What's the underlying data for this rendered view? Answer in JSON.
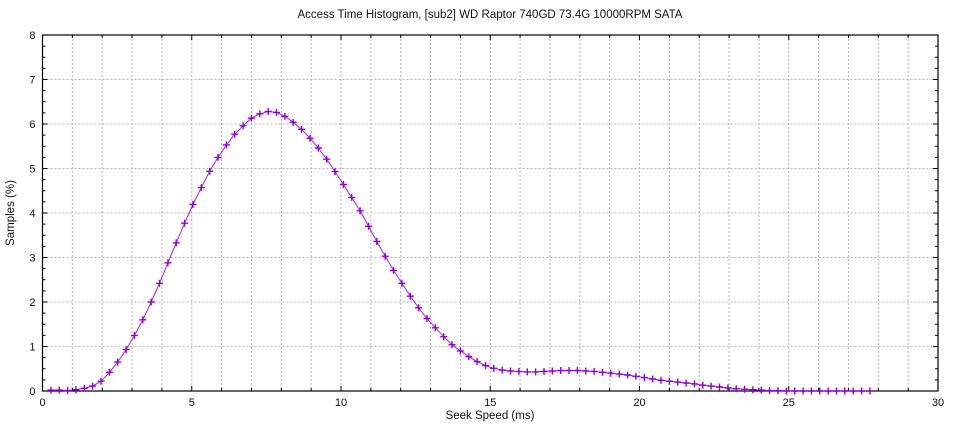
{
  "chart_data": {
    "type": "line",
    "title": "Access Time Histogram, [sub2] WD Raptor 740GD 73.4G 10000RPM SATA",
    "xlabel": "Seek Speed (ms)",
    "ylabel": "Samples (%)",
    "xlim": [
      0,
      30
    ],
    "ylim": [
      0,
      8
    ],
    "x_major_ticks": [
      0,
      5,
      10,
      15,
      20,
      25,
      30
    ],
    "x_tick_labels": [
      "0",
      "5",
      "10",
      "15",
      "20",
      "25",
      "30"
    ],
    "x_minor_step": 1,
    "y_major_ticks": [
      0,
      1,
      2,
      3,
      4,
      5,
      6,
      7,
      8
    ],
    "y_tick_labels": [
      "0",
      "1",
      "2",
      "3",
      "4",
      "5",
      "6",
      "7",
      "8"
    ],
    "y_minor_step": 0.25,
    "grid": true,
    "legend_position": "none",
    "colors": {
      "series": "#9400d3",
      "grid": "#b3b3b3",
      "axis": "#000000",
      "text": "#111111",
      "background": "#ffffff"
    },
    "series": [
      {
        "name": "samples",
        "marker": "plus",
        "color": "#9400d3",
        "x": [
          0.28,
          0.56,
          0.84,
          1.12,
          1.4,
          1.68,
          1.96,
          2.24,
          2.52,
          2.8,
          3.08,
          3.36,
          3.64,
          3.92,
          4.2,
          4.48,
          4.76,
          5.04,
          5.32,
          5.6,
          5.88,
          6.16,
          6.44,
          6.72,
          7.0,
          7.28,
          7.56,
          7.84,
          8.12,
          8.4,
          8.68,
          8.96,
          9.24,
          9.52,
          9.8,
          10.08,
          10.36,
          10.64,
          10.92,
          11.2,
          11.48,
          11.76,
          12.04,
          12.32,
          12.6,
          12.88,
          13.16,
          13.44,
          13.72,
          14.0,
          14.28,
          14.56,
          14.84,
          15.12,
          15.4,
          15.68,
          15.96,
          16.24,
          16.52,
          16.8,
          17.08,
          17.36,
          17.64,
          17.92,
          18.2,
          18.48,
          18.76,
          19.04,
          19.32,
          19.6,
          19.88,
          20.16,
          20.44,
          20.72,
          21.0,
          21.28,
          21.56,
          21.84,
          22.12,
          22.4,
          22.68,
          22.96,
          23.24,
          23.52,
          23.8,
          24.08,
          24.36,
          24.64,
          24.92,
          25.2,
          25.48,
          25.76,
          26.04,
          26.32,
          26.6,
          26.88,
          27.16,
          27.44,
          27.72
        ],
        "y": [
          0.02,
          0.02,
          0.01,
          0.03,
          0.06,
          0.11,
          0.22,
          0.42,
          0.65,
          0.93,
          1.25,
          1.6,
          2.0,
          2.42,
          2.88,
          3.33,
          3.77,
          4.19,
          4.57,
          4.94,
          5.25,
          5.53,
          5.77,
          5.96,
          6.13,
          6.23,
          6.28,
          6.26,
          6.17,
          6.04,
          5.88,
          5.68,
          5.46,
          5.21,
          4.93,
          4.64,
          4.35,
          4.05,
          3.7,
          3.36,
          3.03,
          2.71,
          2.42,
          2.13,
          1.87,
          1.63,
          1.42,
          1.22,
          1.04,
          0.9,
          0.77,
          0.66,
          0.57,
          0.51,
          0.47,
          0.45,
          0.44,
          0.43,
          0.43,
          0.44,
          0.45,
          0.46,
          0.46,
          0.46,
          0.45,
          0.44,
          0.42,
          0.4,
          0.38,
          0.36,
          0.33,
          0.3,
          0.27,
          0.24,
          0.22,
          0.2,
          0.18,
          0.16,
          0.13,
          0.11,
          0.09,
          0.07,
          0.05,
          0.04,
          0.03,
          0.02,
          0.01,
          0.01,
          0.0,
          0.0,
          0.0,
          0.0,
          0.0,
          0.0,
          0.0,
          0.0,
          0.0,
          0.0,
          0.0
        ]
      }
    ]
  }
}
